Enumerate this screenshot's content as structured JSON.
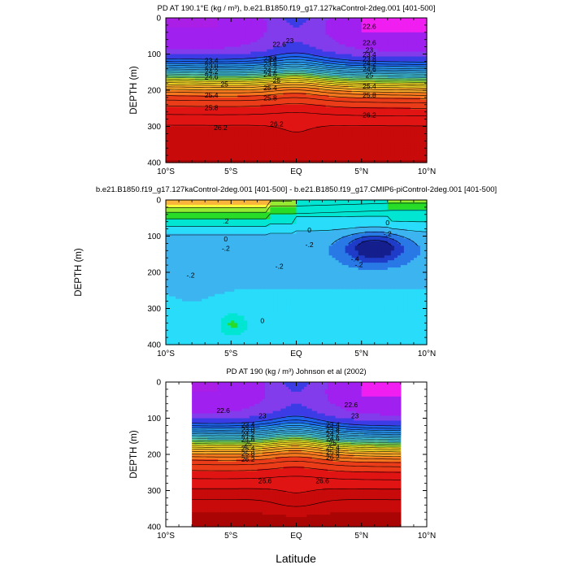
{
  "chart_data": [
    {
      "type": "heatmap",
      "title": "PD AT 190.1°E (kg / m³), b.e21.B1850.f19_g17.127kaControl-2deg.001 [401-500]",
      "xlabel": "",
      "ylabel": "DEPTH (m)",
      "xlim": [
        -10,
        10
      ],
      "ylim": [
        400,
        0
      ],
      "x_ticks": [
        "10°S",
        "5°S",
        "EQ",
        "5°N",
        "10°N"
      ],
      "y_ticks": [
        "0",
        "100",
        "200",
        "300",
        "400"
      ],
      "contour_labels": [
        {
          "text": "22.6",
          "x": -1.3,
          "y": 80
        },
        {
          "text": "23",
          "x": -1.8,
          "y": 120
        },
        {
          "text": "23",
          "x": -0.5,
          "y": 70
        },
        {
          "text": "23.4",
          "x": -6.5,
          "y": 125
        },
        {
          "text": "23.8",
          "x": -6.5,
          "y": 140
        },
        {
          "text": "24.2",
          "x": -6.5,
          "y": 155
        },
        {
          "text": "24.6",
          "x": -6.5,
          "y": 170
        },
        {
          "text": "25",
          "x": -5.5,
          "y": 190
        },
        {
          "text": "25.4",
          "x": -6.5,
          "y": 220
        },
        {
          "text": "25.8",
          "x": -6.5,
          "y": 255
        },
        {
          "text": "26.2",
          "x": -5.8,
          "y": 310
        },
        {
          "text": "23.4",
          "x": -2.0,
          "y": 120
        },
        {
          "text": "23.8",
          "x": -2.0,
          "y": 135
        },
        {
          "text": "24.2",
          "x": -2.0,
          "y": 150
        },
        {
          "text": "24.6",
          "x": -2.0,
          "y": 163
        },
        {
          "text": "25",
          "x": -1.5,
          "y": 180
        },
        {
          "text": "25.4",
          "x": -2.0,
          "y": 200
        },
        {
          "text": "25.8",
          "x": -2.0,
          "y": 228
        },
        {
          "text": "26.2",
          "x": -1.5,
          "y": 300
        },
        {
          "text": "22.6",
          "x": 5.6,
          "y": 30
        },
        {
          "text": "22.6",
          "x": 5.6,
          "y": 75
        },
        {
          "text": "23",
          "x": 5.6,
          "y": 95
        },
        {
          "text": "23.4",
          "x": 5.6,
          "y": 108
        },
        {
          "text": "23.8",
          "x": 5.6,
          "y": 120
        },
        {
          "text": "24.2",
          "x": 5.6,
          "y": 133
        },
        {
          "text": "24.6",
          "x": 5.6,
          "y": 148
        },
        {
          "text": "25",
          "x": 5.6,
          "y": 165
        },
        {
          "text": "25.4",
          "x": 5.6,
          "y": 195
        },
        {
          "text": "25.8",
          "x": 5.6,
          "y": 220
        },
        {
          "text": "26.2",
          "x": 5.6,
          "y": 275
        }
      ]
    },
    {
      "type": "heatmap",
      "title": "b.e21.B1850.f19_g17.127kaControl-2deg.001 [401-500] - b.e21.B1850.f19_g17.CMIP6-piControl-2deg.001 [401-500]",
      "xlabel": "",
      "ylabel": "DEPTH (m)",
      "xlim": [
        -10,
        10
      ],
      "ylim": [
        400,
        0
      ],
      "x_ticks": [
        "10°S",
        "5°S",
        "EQ",
        "5°N",
        "10°N"
      ],
      "y_ticks": [
        "0",
        "100",
        "200",
        "300",
        "400"
      ],
      "contour_labels": [
        {
          "text": ".2",
          "x": -5.4,
          "y": 65
        },
        {
          "text": "0",
          "x": -5.4,
          "y": 115
        },
        {
          "text": "-.2",
          "x": -5.4,
          "y": 140
        },
        {
          "text": "-.2",
          "x": -8.1,
          "y": 215
        },
        {
          "text": "-.2",
          "x": -1.3,
          "y": 190
        },
        {
          "text": "0",
          "x": 1.0,
          "y": 90
        },
        {
          "text": "-.2",
          "x": 1.0,
          "y": 130
        },
        {
          "text": "0",
          "x": 7.0,
          "y": 70
        },
        {
          "text": "-.2",
          "x": 7.0,
          "y": 100
        },
        {
          "text": "-.4",
          "x": 4.5,
          "y": 170
        },
        {
          "text": "-.2",
          "x": 4.8,
          "y": 185
        },
        {
          "text": "0",
          "x": -2.6,
          "y": 340
        }
      ]
    },
    {
      "type": "heatmap",
      "title": "PD AT 190 (kg / m³) Johnson et al (2002)",
      "xlabel": "Latitude",
      "ylabel": "DEPTH (m)",
      "xlim": [
        -10,
        10
      ],
      "ylim": [
        400,
        0
      ],
      "x_ticks": [
        "10°S",
        "5°S",
        "EQ",
        "5°N",
        "10°N"
      ],
      "y_ticks": [
        "0",
        "100",
        "200",
        "300",
        "400"
      ],
      "data_xrange": [
        -8,
        8
      ],
      "contour_labels": [
        {
          "text": "22.6",
          "x": -5.6,
          "y": 85
        },
        {
          "text": "23",
          "x": -2.6,
          "y": 100
        },
        {
          "text": "22.6",
          "x": 4.2,
          "y": 70
        },
        {
          "text": "23",
          "x": 4.5,
          "y": 100
        },
        {
          "text": "23.4",
          "x": -3.7,
          "y": 125
        },
        {
          "text": "23.8",
          "x": -3.7,
          "y": 138
        },
        {
          "text": "24.2",
          "x": -3.7,
          "y": 150
        },
        {
          "text": "24.6",
          "x": -3.7,
          "y": 165
        },
        {
          "text": "25",
          "x": -3.7,
          "y": 178
        },
        {
          "text": "25.4",
          "x": -3.7,
          "y": 190
        },
        {
          "text": "25.8",
          "x": -3.7,
          "y": 205
        },
        {
          "text": "26.2",
          "x": -3.7,
          "y": 220
        },
        {
          "text": "23.4",
          "x": 2.8,
          "y": 125
        },
        {
          "text": "23.8",
          "x": 2.8,
          "y": 138
        },
        {
          "text": "24.2",
          "x": 2.8,
          "y": 150
        },
        {
          "text": "24.6",
          "x": 2.8,
          "y": 163
        },
        {
          "text": "25",
          "x": 2.8,
          "y": 175
        },
        {
          "text": "25.4",
          "x": 2.8,
          "y": 188
        },
        {
          "text": "25.8",
          "x": 2.8,
          "y": 200
        },
        {
          "text": "26.2",
          "x": 2.8,
          "y": 215
        },
        {
          "text": "26.6",
          "x": -2.4,
          "y": 280
        },
        {
          "text": "26.6",
          "x": 2.0,
          "y": 280
        }
      ]
    }
  ]
}
